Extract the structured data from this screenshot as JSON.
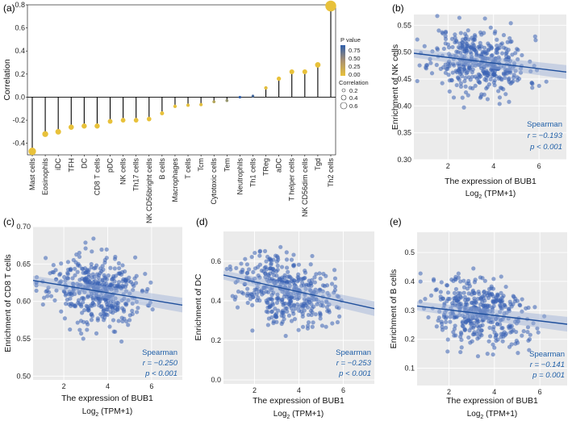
{
  "chart_data": [
    {
      "panel": "(a)",
      "type": "lollipop",
      "ylabel": "Correlation",
      "ylim": [
        -0.5,
        0.8
      ],
      "yticks": [
        "0.8",
        "0.6",
        "0.4",
        "0.2",
        "0.0",
        "-0.2",
        "-0.4"
      ],
      "categories": [
        "Mast cells",
        "Eosinophils",
        "iDC",
        "TFH",
        "DC",
        "CD8 T cells",
        "pDC",
        "NK cells",
        "Th17 cells",
        "NK CD56bright cells",
        "B cells",
        "Macrophages",
        "T cells",
        "Tcm",
        "Cytotoxic cells",
        "Tem",
        "Neutrophils",
        "Th1 cells",
        "TReg",
        "aDC",
        "T helper cells",
        "NK CD56dim cells",
        "Tgd",
        "Th2 cells"
      ],
      "values": [
        -0.47,
        -0.32,
        -0.3,
        -0.26,
        -0.25,
        -0.25,
        -0.21,
        -0.2,
        -0.2,
        -0.19,
        -0.14,
        -0.08,
        -0.07,
        -0.065,
        -0.04,
        -0.03,
        0.0,
        0.01,
        0.08,
        0.16,
        0.22,
        0.22,
        0.28,
        0.79
      ],
      "pvalues": [
        0,
        0,
        0,
        0,
        0,
        0,
        0,
        0,
        0,
        0,
        0,
        0.01,
        0.02,
        0.03,
        0.25,
        0.4,
        0.9,
        0.8,
        0.03,
        0,
        0,
        0,
        0,
        0
      ],
      "legend": {
        "p_title": "P value",
        "p_ticks": [
          "0.75",
          "0.50",
          "0.25",
          "0.00"
        ],
        "size_title": "Correlation",
        "size_ticks": [
          "0.2",
          "0.4",
          "0.6"
        ]
      },
      "colors": {
        "high_p": "#2e5eaa",
        "low_p": "#e8c13a"
      }
    },
    {
      "panel": "(b)",
      "type": "scatter",
      "xlabel": "The expression of BUB1",
      "xlabel2": "Log",
      "xlabel2_sub": "2",
      "xlabel2_tail": " (TPM+1)",
      "ylabel": "Enrichment of NK cells",
      "xlim": [
        0.5,
        7.2
      ],
      "ylim": [
        0.3,
        0.57
      ],
      "xticks": [
        2,
        4,
        6
      ],
      "yticks": [
        0.3,
        0.35,
        0.4,
        0.45,
        0.5,
        0.55
      ],
      "line": {
        "x": [
          0.5,
          7.2
        ],
        "y": [
          0.498,
          0.463
        ]
      },
      "stats": {
        "method": "Spearman",
        "r": "r = −0.193",
        "p": "p < 0.001"
      },
      "seed": 11
    },
    {
      "panel": "(c)",
      "type": "scatter",
      "xlabel": "The expression of BUB1",
      "xlabel2": "Log",
      "xlabel2_sub": "2",
      "xlabel2_tail": " (TPM+1)",
      "ylabel": "Enrichment of CD8 T cells",
      "xlim": [
        0.6,
        7.4
      ],
      "ylim": [
        0.495,
        0.7
      ],
      "xticks": [
        2,
        4,
        6
      ],
      "yticks": [
        0.5,
        0.55,
        0.6,
        0.65,
        0.7
      ],
      "line": {
        "x": [
          0.6,
          7.4
        ],
        "y": [
          0.628,
          0.595
        ]
      },
      "stats": {
        "method": "Spearman",
        "r": "r = −0.250",
        "p": "p < 0.001"
      },
      "seed": 23
    },
    {
      "panel": "(d)",
      "type": "scatter",
      "xlabel": "The expression of BUB1",
      "xlabel2": "Log",
      "xlabel2_sub": "2",
      "xlabel2_tail": " (TPM+1)",
      "ylabel": "Enrichment of DC",
      "xlim": [
        0.6,
        7.4
      ],
      "ylim": [
        -0.02,
        0.75
      ],
      "xticks": [
        2,
        4,
        6
      ],
      "yticks": [
        0.0,
        0.2,
        0.4,
        0.6
      ],
      "line": {
        "x": [
          0.6,
          7.4
        ],
        "y": [
          0.53,
          0.36
        ]
      },
      "stats": {
        "method": "Spearman",
        "r": "r = −0.253",
        "p": "p < 0.001"
      },
      "seed": 37
    },
    {
      "panel": "(e)",
      "type": "scatter",
      "xlabel": "The expression of BUB1",
      "xlabel2": "Log",
      "xlabel2_sub": "2",
      "xlabel2_tail": " (TPM+1)",
      "ylabel": "Enrichment of B cells",
      "xlim": [
        0.6,
        7.2
      ],
      "ylim": [
        0.04,
        0.57
      ],
      "xticks": [
        2,
        4,
        6
      ],
      "yticks": [
        0.1,
        0.2,
        0.3,
        0.4,
        0.5
      ],
      "line": {
        "x": [
          0.6,
          7.2
        ],
        "y": [
          0.315,
          0.252
        ]
      },
      "stats": {
        "method": "Spearman",
        "r": "r = −0.141",
        "p": "p = 0.001"
      },
      "seed": 51
    }
  ]
}
